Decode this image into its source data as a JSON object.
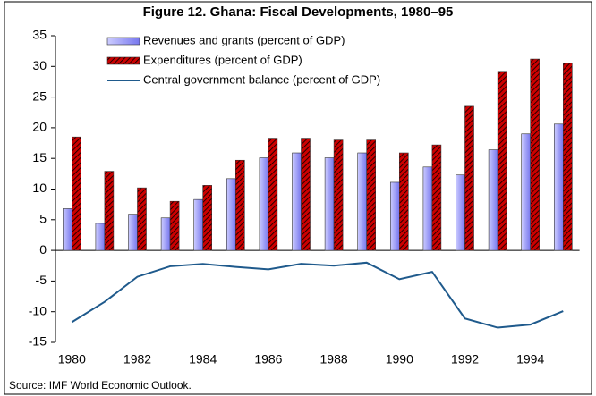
{
  "chart_data": {
    "type": "bar_line",
    "title": "Figure 12. Ghana: Fiscal Developments, 1980–95",
    "source": "Source: IMF World Economic Outlook.",
    "categories": [
      "1980",
      null,
      "1982",
      null,
      "1984",
      null,
      "1986",
      null,
      "1988",
      null,
      "1990",
      null,
      "1992",
      null,
      "1994",
      null
    ],
    "series": [
      {
        "name": "Revenues and grants (percent of GDP)",
        "kind": "bar",
        "color": "#9999ff",
        "values": [
          6.8,
          4.4,
          5.9,
          5.3,
          8.3,
          11.7,
          15.1,
          15.9,
          15.1,
          15.9,
          11.1,
          13.6,
          12.3,
          16.4,
          19.0,
          20.6
        ]
      },
      {
        "name": "Expenditures (percent of GDP)",
        "kind": "bar",
        "color": "#cc0000",
        "values": [
          18.5,
          12.9,
          10.2,
          8.0,
          10.6,
          14.7,
          18.3,
          18.3,
          18.0,
          18.0,
          15.9,
          17.2,
          23.5,
          29.2,
          31.2,
          30.5
        ]
      },
      {
        "name": "Central government balance (percent of GDP)",
        "kind": "line",
        "color": "#1f5a8c",
        "values": [
          -11.7,
          -8.4,
          -4.3,
          -2.6,
          -2.2,
          -2.7,
          -3.1,
          -2.2,
          -2.5,
          -2.0,
          -4.7,
          -3.5,
          -11.1,
          -12.6,
          -12.1,
          -9.9
        ]
      }
    ],
    "ylim": [
      -15,
      35
    ],
    "yticks": [
      -15,
      -10,
      -5,
      0,
      5,
      10,
      15,
      20,
      25,
      30,
      35
    ],
    "legend": "upper left"
  }
}
